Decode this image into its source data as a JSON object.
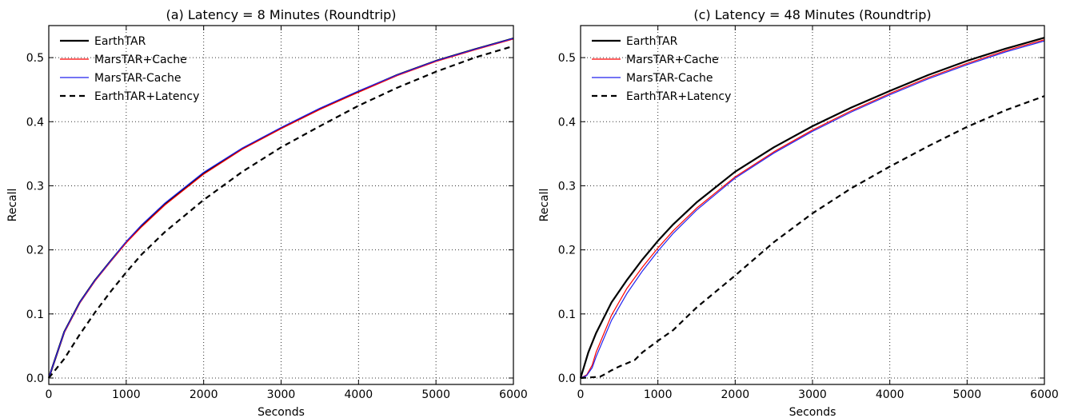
{
  "chart_data": [
    {
      "type": "line",
      "title": "(a) Latency = 8 Minutes (Roundtrip)",
      "xlabel": "Seconds",
      "ylabel": "Recall",
      "xlim": [
        0,
        6000
      ],
      "ylim": [
        -0.01,
        0.55
      ],
      "xticks": [
        0,
        1000,
        2000,
        3000,
        4000,
        5000,
        6000
      ],
      "yticks": [
        0.0,
        0.1,
        0.2,
        0.3,
        0.4,
        0.5
      ],
      "grid": true,
      "legend": "top-left",
      "series": [
        {
          "name": "EarthTAR",
          "color": "#000000",
          "style": "solid",
          "width": 2.2,
          "x": [
            0,
            200,
            400,
            600,
            800,
            1000,
            1200,
            1500,
            2000,
            2500,
            3000,
            3500,
            4000,
            4500,
            5000,
            5500,
            6000
          ],
          "y": [
            0,
            0.072,
            0.118,
            0.153,
            0.183,
            0.212,
            0.238,
            0.272,
            0.32,
            0.358,
            0.39,
            0.42,
            0.447,
            0.473,
            0.495,
            0.513,
            0.53
          ]
        },
        {
          "name": "MarsTAR+Cache",
          "color": "#ff0000",
          "style": "solid",
          "width": 1.2,
          "x": [
            0,
            200,
            400,
            600,
            800,
            1000,
            1200,
            1500,
            2000,
            2500,
            3000,
            3500,
            4000,
            4500,
            5000,
            5500,
            6000
          ],
          "y": [
            0,
            0.071,
            0.117,
            0.152,
            0.182,
            0.211,
            0.236,
            0.27,
            0.318,
            0.357,
            0.389,
            0.419,
            0.446,
            0.472,
            0.494,
            0.512,
            0.529
          ]
        },
        {
          "name": "MarsTAR-Cache",
          "color": "#2222ee",
          "style": "solid",
          "width": 1.2,
          "x": [
            0,
            200,
            400,
            600,
            800,
            1000,
            1200,
            1500,
            2000,
            2500,
            3000,
            3500,
            4000,
            4500,
            5000,
            5500,
            6000
          ],
          "y": [
            0,
            0.072,
            0.118,
            0.153,
            0.183,
            0.213,
            0.239,
            0.273,
            0.321,
            0.359,
            0.391,
            0.421,
            0.448,
            0.473,
            0.495,
            0.513,
            0.53
          ]
        },
        {
          "name": "EarthTAR+Latency",
          "color": "#000000",
          "style": "dashed",
          "width": 2.2,
          "x": [
            0,
            200,
            400,
            600,
            800,
            1000,
            1200,
            1500,
            2000,
            2500,
            3000,
            3500,
            4000,
            4500,
            5000,
            5500,
            6000
          ],
          "y": [
            0,
            0.03,
            0.068,
            0.103,
            0.135,
            0.165,
            0.193,
            0.228,
            0.278,
            0.322,
            0.36,
            0.393,
            0.425,
            0.453,
            0.478,
            0.5,
            0.518
          ]
        }
      ]
    },
    {
      "type": "line",
      "title": "(c) Latency = 48 Minutes (Roundtrip)",
      "xlabel": "Seconds",
      "ylabel": "Recall",
      "xlim": [
        0,
        6000
      ],
      "ylim": [
        -0.01,
        0.55
      ],
      "xticks": [
        0,
        1000,
        2000,
        3000,
        4000,
        5000,
        6000
      ],
      "yticks": [
        0.0,
        0.1,
        0.2,
        0.3,
        0.4,
        0.5
      ],
      "grid": true,
      "legend": "top-left",
      "series": [
        {
          "name": "EarthTAR",
          "color": "#000000",
          "style": "solid",
          "width": 2.2,
          "x": [
            0,
            100,
            200,
            400,
            600,
            800,
            1000,
            1200,
            1500,
            2000,
            2500,
            3000,
            3500,
            4000,
            4500,
            5000,
            5500,
            6000
          ],
          "y": [
            0,
            0.04,
            0.07,
            0.118,
            0.153,
            0.185,
            0.214,
            0.24,
            0.274,
            0.322,
            0.36,
            0.393,
            0.422,
            0.448,
            0.473,
            0.495,
            0.514,
            0.531
          ]
        },
        {
          "name": "MarsTAR+Cache",
          "color": "#ff0000",
          "style": "solid",
          "width": 1.2,
          "x": [
            0,
            80,
            150,
            200,
            400,
            600,
            800,
            1000,
            1200,
            1500,
            2000,
            2500,
            3000,
            3500,
            4000,
            4500,
            5000,
            5500,
            6000
          ],
          "y": [
            0,
            0.005,
            0.02,
            0.04,
            0.098,
            0.14,
            0.173,
            0.203,
            0.23,
            0.265,
            0.314,
            0.353,
            0.387,
            0.417,
            0.444,
            0.469,
            0.491,
            0.511,
            0.528
          ]
        },
        {
          "name": "MarsTAR-Cache",
          "color": "#2222ee",
          "style": "solid",
          "width": 1.2,
          "x": [
            0,
            80,
            150,
            200,
            400,
            600,
            800,
            1000,
            1200,
            1500,
            2000,
            2500,
            3000,
            3500,
            4000,
            4500,
            5000,
            5500,
            6000
          ],
          "y": [
            0,
            0.004,
            0.016,
            0.033,
            0.09,
            0.132,
            0.167,
            0.198,
            0.226,
            0.262,
            0.312,
            0.351,
            0.385,
            0.415,
            0.442,
            0.467,
            0.489,
            0.509,
            0.526
          ]
        },
        {
          "name": "EarthTAR+Latency",
          "color": "#000000",
          "style": "dashed",
          "width": 2.2,
          "x": [
            0,
            250,
            300,
            400,
            500,
            700,
            800,
            1000,
            1200,
            1500,
            2000,
            2500,
            3000,
            3500,
            4000,
            4500,
            5000,
            5500,
            6000
          ],
          "y": [
            0,
            0.002,
            0.005,
            0.012,
            0.018,
            0.028,
            0.04,
            0.058,
            0.075,
            0.11,
            0.16,
            0.212,
            0.257,
            0.296,
            0.33,
            0.362,
            0.392,
            0.418,
            0.44
          ]
        }
      ]
    }
  ]
}
